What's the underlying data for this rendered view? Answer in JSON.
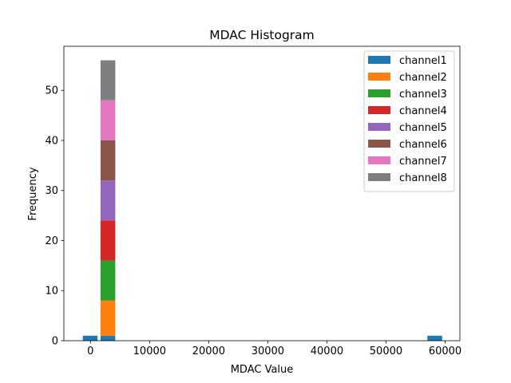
{
  "chart_data": {
    "type": "bar",
    "stacked": true,
    "title": "MDAC Histogram",
    "xlabel": "MDAC Value",
    "ylabel": "Frequency",
    "xlim": [
      -4500,
      62500
    ],
    "ylim": [
      0,
      58.8
    ],
    "x_ticks": [
      0,
      10000,
      20000,
      30000,
      40000,
      50000,
      60000
    ],
    "x_tick_labels": [
      "0",
      "10000",
      "20000",
      "30000",
      "40000",
      "50000",
      "60000"
    ],
    "y_ticks": [
      0,
      10,
      20,
      30,
      40,
      50
    ],
    "y_tick_labels": [
      "0",
      "10",
      "20",
      "30",
      "40",
      "50"
    ],
    "grid": false,
    "legend_position": "top-right",
    "series": [
      {
        "name": "channel1",
        "color": "#1f77b4",
        "bars": [
          {
            "x0": -1300,
            "x1": 1200,
            "value": 1
          },
          {
            "x0": 1700,
            "x1": 4200,
            "value": 1
          },
          {
            "x0": 57000,
            "x1": 59500,
            "value": 1
          }
        ]
      },
      {
        "name": "channel2",
        "color": "#ff7f0e",
        "bars": [
          {
            "x0": 1700,
            "x1": 4200,
            "value": 7
          }
        ]
      },
      {
        "name": "channel3",
        "color": "#2ca02c",
        "bars": [
          {
            "x0": 1700,
            "x1": 4200,
            "value": 8
          }
        ]
      },
      {
        "name": "channel4",
        "color": "#d62728",
        "bars": [
          {
            "x0": 1700,
            "x1": 4200,
            "value": 8
          }
        ]
      },
      {
        "name": "channel5",
        "color": "#9467bd",
        "bars": [
          {
            "x0": 1700,
            "x1": 4200,
            "value": 8
          }
        ]
      },
      {
        "name": "channel6",
        "color": "#8c564b",
        "bars": [
          {
            "x0": 1700,
            "x1": 4200,
            "value": 8
          }
        ]
      },
      {
        "name": "channel7",
        "color": "#e377c2",
        "bars": [
          {
            "x0": 1700,
            "x1": 4200,
            "value": 8
          }
        ]
      },
      {
        "name": "channel8",
        "color": "#7f7f7f",
        "bars": [
          {
            "x0": 1700,
            "x1": 4200,
            "value": 8
          }
        ]
      }
    ]
  }
}
